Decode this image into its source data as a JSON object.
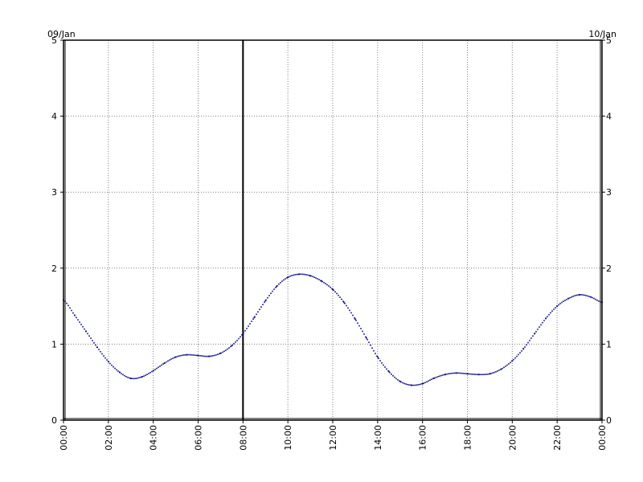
{
  "chart_data": {
    "type": "line",
    "title": "",
    "xlabel": "",
    "ylabel": "",
    "date_left": "09/Jan",
    "date_right": "10/Jan",
    "x_ticks": [
      "00:00",
      "02:00",
      "04:00",
      "06:00",
      "08:00",
      "10:00",
      "12:00",
      "14:00",
      "16:00",
      "18:00",
      "20:00",
      "22:00",
      "00:00"
    ],
    "xlim_hours": [
      0,
      24
    ],
    "y_ticks": [
      "0",
      "1",
      "2",
      "3",
      "4",
      "5"
    ],
    "ylim": [
      0,
      5
    ],
    "grid": true,
    "marker_hour": 8,
    "colors": {
      "series": "#0a0a8a",
      "marker": "#000000",
      "grid": "#808080",
      "frame": "#000000"
    },
    "series": [
      {
        "hours": [
          0,
          0.5,
          1,
          1.5,
          2,
          2.5,
          3,
          3.5,
          4,
          4.5,
          5,
          5.5,
          6,
          6.5,
          7,
          7.5,
          8,
          8.5,
          9,
          9.5,
          10,
          10.5,
          11,
          11.5,
          12,
          12.5,
          13,
          13.5,
          14,
          14.5,
          15,
          15.5,
          16,
          16.5,
          17,
          17.5,
          18,
          18.5,
          19,
          19.5,
          20,
          20.5,
          21,
          21.5,
          22,
          22.5,
          23,
          23.5,
          24
        ],
        "values": [
          1.58,
          1.38,
          1.17,
          0.96,
          0.77,
          0.63,
          0.55,
          0.57,
          0.65,
          0.75,
          0.83,
          0.86,
          0.85,
          0.84,
          0.88,
          0.98,
          1.14,
          1.35,
          1.57,
          1.76,
          1.88,
          1.92,
          1.9,
          1.83,
          1.72,
          1.55,
          1.33,
          1.08,
          0.83,
          0.64,
          0.51,
          0.46,
          0.48,
          0.55,
          0.6,
          0.62,
          0.61,
          0.6,
          0.61,
          0.67,
          0.78,
          0.94,
          1.14,
          1.34,
          1.5,
          1.6,
          1.65,
          1.62,
          1.55
        ]
      }
    ]
  }
}
